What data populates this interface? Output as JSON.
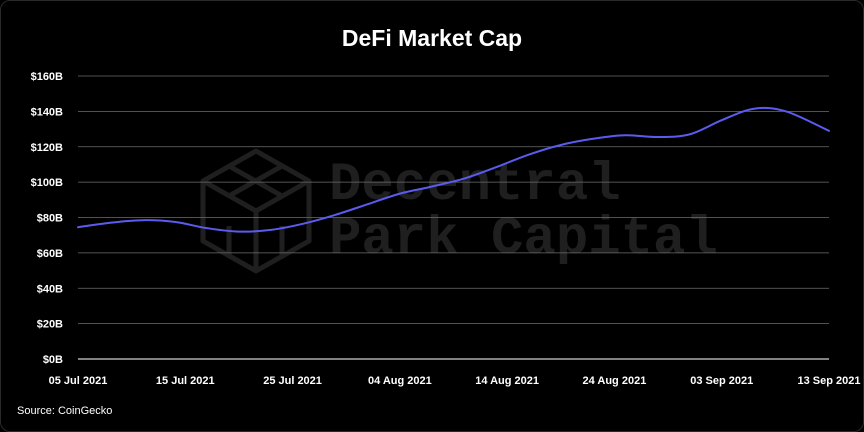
{
  "chart_data": {
    "type": "line",
    "title": "DeFi Market Cap",
    "source": "Source: CoinGecko",
    "watermark": {
      "lines": [
        "Decentral",
        "Park Capital"
      ],
      "icon": "cube-logo-icon"
    },
    "xlabel": "",
    "ylabel": "",
    "x_tick_labels": [
      "05 Jul 2021",
      "15 Jul 2021",
      "25 Jul 2021",
      "04 Aug 2021",
      "14 Aug 2021",
      "24 Aug 2021",
      "03 Sep 2021",
      "13 Sep 2021"
    ],
    "y_tick_labels": [
      "$0B",
      "$20B",
      "$40B",
      "$60B",
      "$80B",
      "$100B",
      "$120B",
      "$140B",
      "$160B"
    ],
    "y_ticks": [
      0,
      20,
      40,
      60,
      80,
      100,
      120,
      140,
      160
    ],
    "ylim": [
      0,
      160
    ],
    "xlim": [
      "2021-07-05",
      "2021-09-13"
    ],
    "grid": true,
    "series": [
      {
        "color": "#5b5bf0",
        "points": [
          {
            "x": "2021-07-05",
            "y": 74.5
          },
          {
            "x": "2021-07-08",
            "y": 77
          },
          {
            "x": "2021-07-11",
            "y": 78.5
          },
          {
            "x": "2021-07-14",
            "y": 77.5
          },
          {
            "x": "2021-07-17",
            "y": 74
          },
          {
            "x": "2021-07-20",
            "y": 72
          },
          {
            "x": "2021-07-23",
            "y": 73
          },
          {
            "x": "2021-07-26",
            "y": 76.5
          },
          {
            "x": "2021-07-29",
            "y": 81.5
          },
          {
            "x": "2021-08-01",
            "y": 87.5
          },
          {
            "x": "2021-08-04",
            "y": 93.5
          },
          {
            "x": "2021-08-07",
            "y": 97.5
          },
          {
            "x": "2021-08-10",
            "y": 102
          },
          {
            "x": "2021-08-13",
            "y": 108.5
          },
          {
            "x": "2021-08-16",
            "y": 115.5
          },
          {
            "x": "2021-08-19",
            "y": 121
          },
          {
            "x": "2021-08-22",
            "y": 124.5
          },
          {
            "x": "2021-08-25",
            "y": 126.5
          },
          {
            "x": "2021-08-28",
            "y": 125.5
          },
          {
            "x": "2021-08-31",
            "y": 127
          },
          {
            "x": "2021-09-03",
            "y": 135
          },
          {
            "x": "2021-09-06",
            "y": 141.5
          },
          {
            "x": "2021-09-09",
            "y": 140
          },
          {
            "x": "2021-09-13",
            "y": 129
          }
        ]
      }
    ]
  }
}
